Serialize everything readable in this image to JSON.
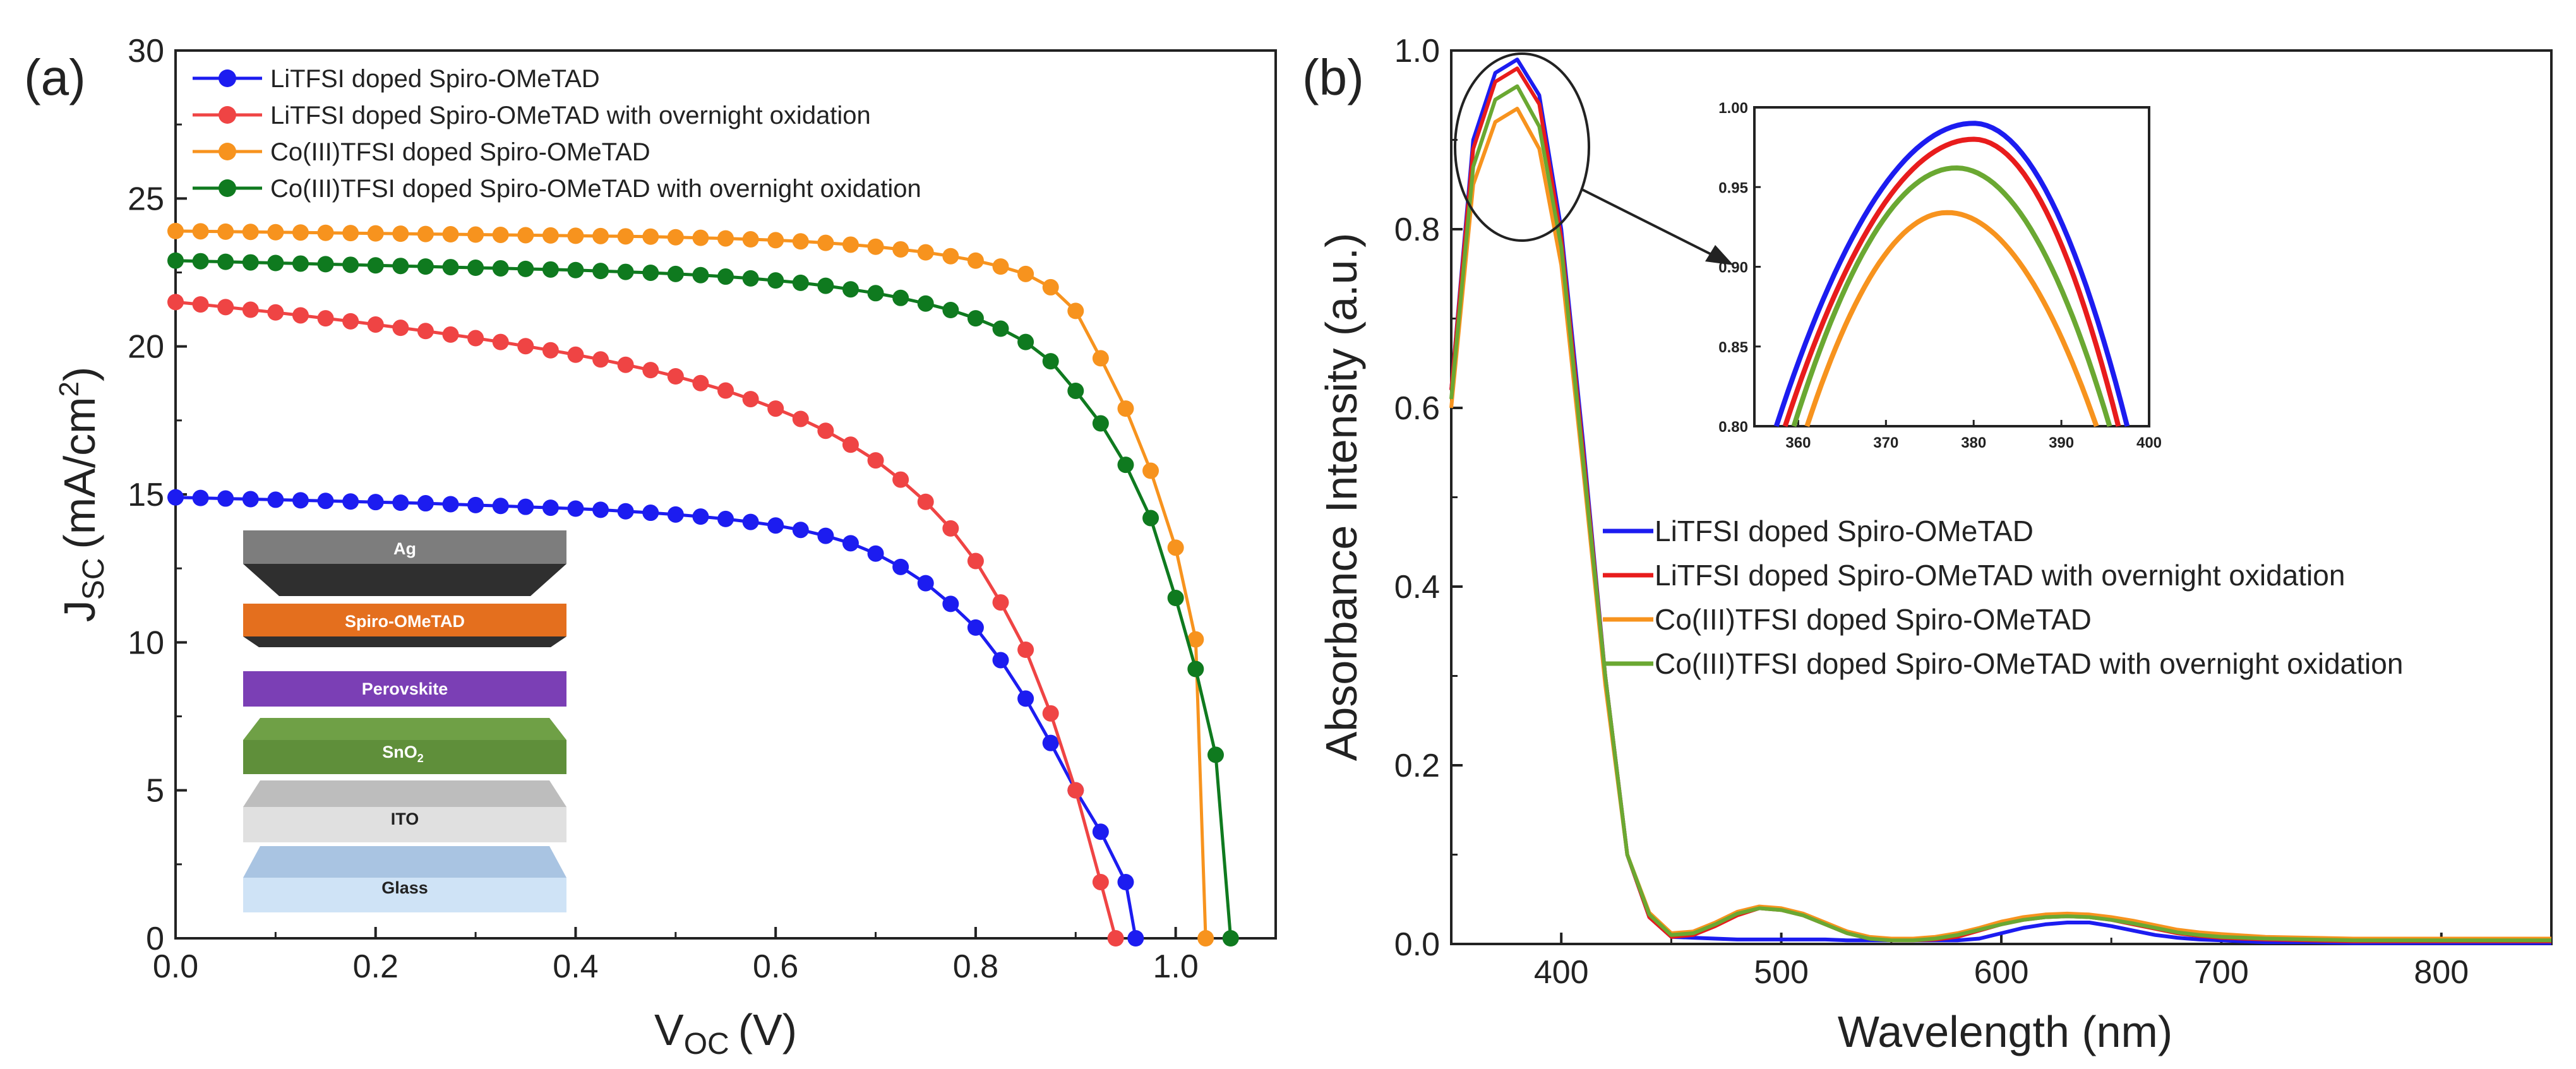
{
  "chart_data": [
    {
      "panel": "(a)",
      "type": "line",
      "xlabel_main": "V",
      "xlabel_sub": "OC",
      "xlabel_unit": "(V)",
      "ylabel_main": "J",
      "ylabel_sub": "SC",
      "ylabel_unit": "(mA/cm",
      "ylabel_sup": "2",
      "ylabel_close": ")",
      "xlim": [
        0,
        1.1
      ],
      "ylim": [
        0,
        30
      ],
      "xticks": [
        "0.0",
        "0.2",
        "0.4",
        "0.6",
        "0.8",
        "1.0"
      ],
      "yticks": [
        "0",
        "5",
        "10",
        "15",
        "20",
        "25",
        "30"
      ],
      "legend_position": "top-left",
      "series": [
        {
          "name": "LiTFSI doped Spiro-OMeTAD",
          "color": "#1c1cf0",
          "x": [
            0.0,
            0.025,
            0.05,
            0.075,
            0.1,
            0.125,
            0.15,
            0.175,
            0.2,
            0.225,
            0.25,
            0.275,
            0.3,
            0.325,
            0.35,
            0.375,
            0.4,
            0.425,
            0.45,
            0.475,
            0.5,
            0.525,
            0.55,
            0.575,
            0.6,
            0.625,
            0.65,
            0.675,
            0.7,
            0.725,
            0.75,
            0.775,
            0.8,
            0.825,
            0.85,
            0.875,
            0.9,
            0.925,
            0.95,
            0.96
          ],
          "y": [
            14.9,
            14.88,
            14.86,
            14.84,
            14.82,
            14.8,
            14.78,
            14.76,
            14.74,
            14.72,
            14.7,
            14.67,
            14.64,
            14.61,
            14.58,
            14.55,
            14.52,
            14.48,
            14.43,
            14.38,
            14.32,
            14.25,
            14.17,
            14.07,
            13.95,
            13.8,
            13.6,
            13.35,
            13.0,
            12.55,
            12.0,
            11.3,
            10.5,
            9.4,
            8.1,
            6.6,
            5.0,
            3.6,
            1.9,
            0.0
          ]
        },
        {
          "name": "LiTFSI doped Spiro-OMeTAD with overnight oxidation",
          "color": "#ef4444",
          "x": [
            0.0,
            0.025,
            0.05,
            0.075,
            0.1,
            0.125,
            0.15,
            0.175,
            0.2,
            0.225,
            0.25,
            0.275,
            0.3,
            0.325,
            0.35,
            0.375,
            0.4,
            0.425,
            0.45,
            0.475,
            0.5,
            0.525,
            0.55,
            0.575,
            0.6,
            0.625,
            0.65,
            0.675,
            0.7,
            0.725,
            0.75,
            0.775,
            0.8,
            0.825,
            0.85,
            0.875,
            0.9,
            0.925,
            0.94
          ],
          "y": [
            21.5,
            21.42,
            21.33,
            21.24,
            21.15,
            21.05,
            20.95,
            20.85,
            20.74,
            20.63,
            20.52,
            20.4,
            20.28,
            20.15,
            20.01,
            19.87,
            19.72,
            19.56,
            19.38,
            19.2,
            18.99,
            18.76,
            18.51,
            18.22,
            17.9,
            17.55,
            17.15,
            16.68,
            16.15,
            15.5,
            14.75,
            13.85,
            12.75,
            11.35,
            9.75,
            7.6,
            5.0,
            1.9,
            0.0
          ]
        },
        {
          "name": "Co(III)TFSI doped Spiro-OMeTAD",
          "color": "#f7931e",
          "x": [
            0.0,
            0.025,
            0.05,
            0.075,
            0.1,
            0.125,
            0.15,
            0.175,
            0.2,
            0.225,
            0.25,
            0.275,
            0.3,
            0.325,
            0.35,
            0.375,
            0.4,
            0.425,
            0.45,
            0.475,
            0.5,
            0.525,
            0.55,
            0.575,
            0.6,
            0.625,
            0.65,
            0.675,
            0.7,
            0.725,
            0.75,
            0.775,
            0.8,
            0.825,
            0.85,
            0.875,
            0.9,
            0.925,
            0.95,
            0.975,
            1.0,
            1.02,
            1.03
          ],
          "y": [
            23.9,
            23.89,
            23.88,
            23.87,
            23.86,
            23.85,
            23.84,
            23.83,
            23.82,
            23.81,
            23.8,
            23.79,
            23.78,
            23.77,
            23.76,
            23.75,
            23.74,
            23.73,
            23.72,
            23.71,
            23.69,
            23.67,
            23.65,
            23.62,
            23.59,
            23.55,
            23.5,
            23.44,
            23.37,
            23.28,
            23.18,
            23.05,
            22.9,
            22.7,
            22.45,
            22.0,
            21.2,
            19.6,
            17.9,
            15.8,
            13.2,
            10.1,
            0.0
          ]
        },
        {
          "name": "Co(III)TFSI doped Spiro-OMeTAD with overnight oxidation",
          "color": "#0f7a1f",
          "x": [
            0.0,
            0.025,
            0.05,
            0.075,
            0.1,
            0.125,
            0.15,
            0.175,
            0.2,
            0.225,
            0.25,
            0.275,
            0.3,
            0.325,
            0.35,
            0.375,
            0.4,
            0.425,
            0.45,
            0.475,
            0.5,
            0.525,
            0.55,
            0.575,
            0.6,
            0.625,
            0.65,
            0.675,
            0.7,
            0.725,
            0.75,
            0.775,
            0.8,
            0.825,
            0.85,
            0.875,
            0.9,
            0.925,
            0.95,
            0.975,
            1.0,
            1.02,
            1.04,
            1.055
          ],
          "y": [
            22.9,
            22.88,
            22.86,
            22.84,
            22.82,
            22.8,
            22.78,
            22.76,
            22.74,
            22.72,
            22.7,
            22.68,
            22.66,
            22.64,
            22.62,
            22.6,
            22.58,
            22.55,
            22.52,
            22.49,
            22.45,
            22.41,
            22.36,
            22.3,
            22.23,
            22.15,
            22.05,
            21.93,
            21.8,
            21.64,
            21.45,
            21.23,
            20.95,
            20.6,
            20.15,
            19.5,
            18.5,
            17.4,
            16.0,
            14.2,
            11.5,
            9.1,
            6.2,
            0.0
          ]
        }
      ]
    },
    {
      "panel": "(b)",
      "type": "line",
      "xlabel": "Wavelength (nm)",
      "ylabel": "Absorbance Intensity (a.u.)",
      "xlim": [
        350,
        850
      ],
      "ylim": [
        0,
        1.0
      ],
      "xticks": [
        "400",
        "500",
        "600",
        "700",
        "800"
      ],
      "yticks": [
        "0.0",
        "0.2",
        "0.4",
        "0.6",
        "0.8",
        "1.0"
      ],
      "legend_position": "center-right",
      "series": [
        {
          "name": "LiTFSI doped Spiro-OMeTAD",
          "color": "#1c1cf0",
          "x": [
            350,
            360,
            370,
            380,
            390,
            400,
            410,
            420,
            430,
            440,
            450,
            460,
            470,
            480,
            490,
            500,
            510,
            520,
            530,
            540,
            550,
            560,
            570,
            580,
            590,
            600,
            610,
            620,
            630,
            640,
            650,
            660,
            670,
            680,
            690,
            700,
            720,
            740,
            760,
            780,
            800,
            820,
            850
          ],
          "y": [
            0.62,
            0.9,
            0.975,
            0.99,
            0.95,
            0.8,
            0.56,
            0.3,
            0.1,
            0.03,
            0.008,
            0.007,
            0.006,
            0.005,
            0.005,
            0.005,
            0.005,
            0.005,
            0.004,
            0.004,
            0.004,
            0.004,
            0.004,
            0.004,
            0.006,
            0.012,
            0.018,
            0.022,
            0.024,
            0.024,
            0.02,
            0.015,
            0.01,
            0.007,
            0.005,
            0.004,
            0.002,
            0.002,
            0.001,
            0.001,
            0.001,
            0.001,
            0.001
          ]
        },
        {
          "name": "LiTFSI doped Spiro-OMeTAD with overnight oxidation",
          "color": "#e81c1c",
          "x": [
            350,
            360,
            370,
            380,
            390,
            400,
            410,
            420,
            430,
            440,
            450,
            460,
            470,
            480,
            490,
            500,
            510,
            520,
            530,
            540,
            550,
            560,
            570,
            580,
            590,
            600,
            610,
            620,
            630,
            640,
            650,
            660,
            670,
            680,
            690,
            700,
            720,
            740,
            760,
            780,
            800,
            820,
            850
          ],
          "y": [
            0.62,
            0.89,
            0.965,
            0.98,
            0.94,
            0.79,
            0.55,
            0.3,
            0.1,
            0.03,
            0.008,
            0.01,
            0.02,
            0.032,
            0.04,
            0.038,
            0.032,
            0.022,
            0.012,
            0.006,
            0.004,
            0.004,
            0.005,
            0.008,
            0.015,
            0.022,
            0.027,
            0.03,
            0.031,
            0.03,
            0.027,
            0.022,
            0.017,
            0.012,
            0.009,
            0.007,
            0.005,
            0.004,
            0.003,
            0.003,
            0.003,
            0.003,
            0.003
          ]
        },
        {
          "name": "Co(III)TFSI doped Spiro-OMeTAD",
          "color": "#f7931e",
          "x": [
            350,
            360,
            370,
            380,
            390,
            400,
            410,
            420,
            430,
            440,
            450,
            460,
            470,
            480,
            490,
            500,
            510,
            520,
            530,
            540,
            550,
            560,
            570,
            580,
            590,
            600,
            610,
            620,
            630,
            640,
            650,
            660,
            670,
            680,
            690,
            700,
            720,
            740,
            760,
            780,
            800,
            820,
            850
          ],
          "y": [
            0.6,
            0.85,
            0.92,
            0.935,
            0.89,
            0.76,
            0.53,
            0.29,
            0.1,
            0.035,
            0.012,
            0.014,
            0.024,
            0.036,
            0.042,
            0.04,
            0.034,
            0.024,
            0.014,
            0.008,
            0.006,
            0.006,
            0.008,
            0.012,
            0.018,
            0.025,
            0.03,
            0.033,
            0.034,
            0.033,
            0.03,
            0.026,
            0.021,
            0.016,
            0.013,
            0.011,
            0.008,
            0.007,
            0.006,
            0.006,
            0.006,
            0.006,
            0.006
          ]
        },
        {
          "name": "Co(III)TFSI doped Spiro-OMeTAD with overnight oxidation",
          "color": "#6aa832",
          "x": [
            350,
            360,
            370,
            380,
            390,
            400,
            410,
            420,
            430,
            440,
            450,
            460,
            470,
            480,
            490,
            500,
            510,
            520,
            530,
            540,
            550,
            560,
            570,
            580,
            590,
            600,
            610,
            620,
            630,
            640,
            650,
            660,
            670,
            680,
            690,
            700,
            720,
            740,
            760,
            780,
            800,
            820,
            850
          ],
          "y": [
            0.61,
            0.87,
            0.945,
            0.96,
            0.915,
            0.78,
            0.54,
            0.3,
            0.1,
            0.033,
            0.01,
            0.012,
            0.022,
            0.034,
            0.04,
            0.038,
            0.032,
            0.022,
            0.012,
            0.006,
            0.004,
            0.004,
            0.006,
            0.01,
            0.016,
            0.022,
            0.027,
            0.03,
            0.031,
            0.03,
            0.027,
            0.023,
            0.018,
            0.013,
            0.01,
            0.008,
            0.006,
            0.005,
            0.004,
            0.004,
            0.004,
            0.004,
            0.004
          ]
        }
      ],
      "inset": {
        "xlim": [
          355,
          400
        ],
        "ylim": [
          0.8,
          1.0
        ],
        "xticks": [
          "360",
          "370",
          "380",
          "390",
          "400"
        ],
        "yticks": [
          "0.80",
          "0.85",
          "0.90",
          "0.95",
          "1.00"
        ],
        "peaks": [
          {
            "color": "#1c1cf0",
            "x0": 357.5,
            "x1": 397.5,
            "peak_x": 380,
            "peak_y": 0.99
          },
          {
            "color": "#e81c1c",
            "x0": 358.5,
            "x1": 396.5,
            "peak_x": 380,
            "peak_y": 0.98
          },
          {
            "color": "#6aa832",
            "x0": 359.5,
            "x1": 395.5,
            "peak_x": 378,
            "peak_y": 0.962
          },
          {
            "color": "#f7931e",
            "x0": 361.0,
            "x1": 394.0,
            "peak_x": 377,
            "peak_y": 0.934
          }
        ]
      }
    }
  ],
  "device_stack": {
    "layers": [
      {
        "label": "Ag",
        "color": "#7d7d7d",
        "dark": "#2f2f2f"
      },
      {
        "label": "Spiro-OMeTAD",
        "color": "#e46f1e",
        "dark": "#2f2f2f"
      },
      {
        "label": "Perovskite",
        "color": "#7b3fb5"
      },
      {
        "label": "SnO",
        "sub": "2",
        "color": "#5f8f3a",
        "top": "#6fa046"
      },
      {
        "label": "ITO",
        "color": "#e0e0e0",
        "top": "#bdbdbd"
      },
      {
        "label": "Glass",
        "color": "#cfe3f6",
        "top": "#a9c4e2"
      }
    ]
  }
}
